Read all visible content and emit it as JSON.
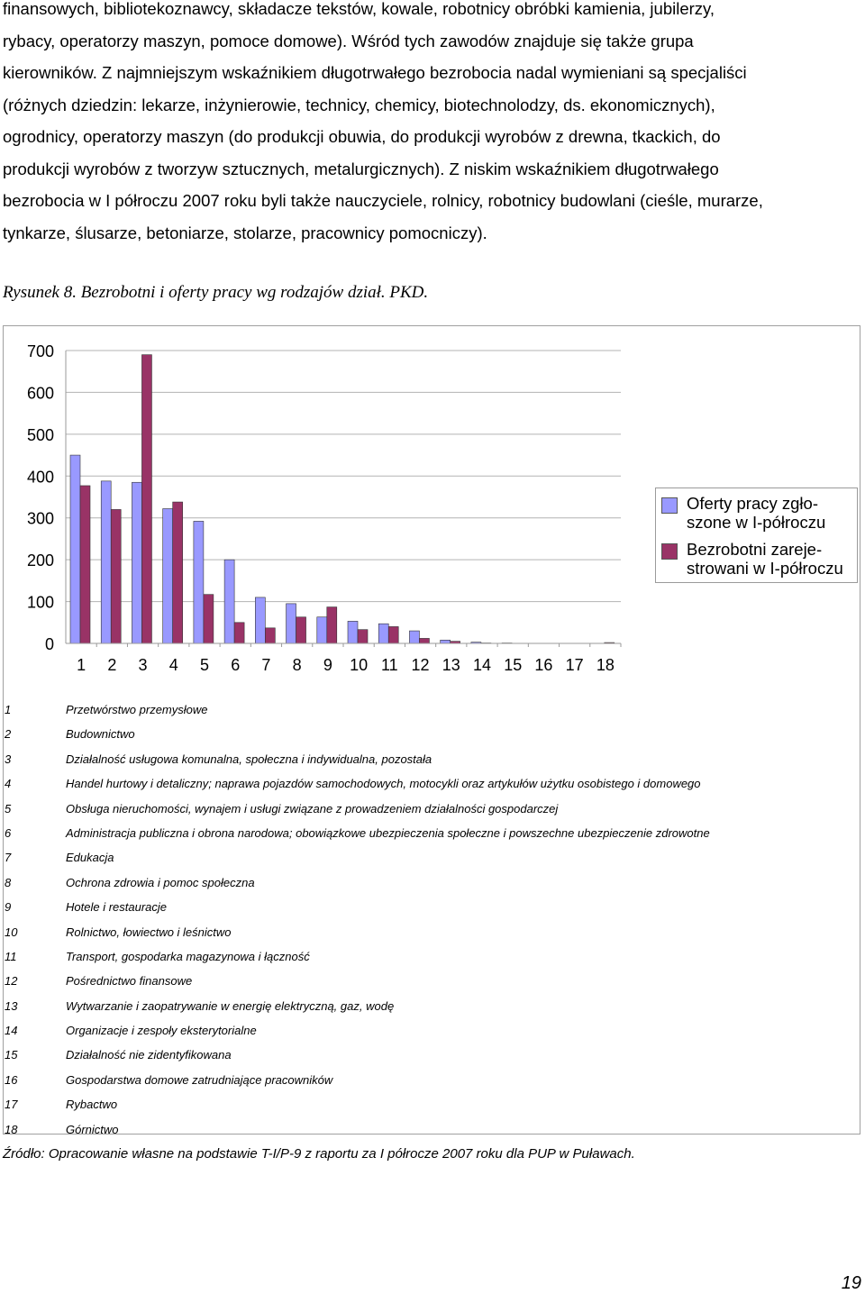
{
  "body_text": {
    "lines": [
      "finansowych, bibliotekoznawcy, składacze tekstów, kowale, robotnicy obróbki kamienia, jubilerzy,",
      "rybacy, operatorzy maszyn, pomoce domowe). Wśród tych zawodów znajduje się także grupa",
      "kierowników. Z najmniejszym wskaźnikiem długotrwałego bezrobocia nadal wymieniani są specjaliści",
      "(różnych dziedzin: lekarze, inżynierowie, technicy, chemicy, biotechnolodzy, ds. ekonomicznych),",
      "ogrodnicy, operatorzy maszyn (do produkcji obuwia, do produkcji wyrobów z drewna, tkackich, do",
      "produkcji wyrobów z tworzyw sztucznych,  metalurgicznych). Z niskim wskaźnikiem długotrwałego",
      "bezrobocia w I półroczu 2007 roku byli także nauczyciele, rolnicy, robotnicy budowlani (cieśle, murarze,",
      "tynkarze, ślusarze, betoniarze, stolarze, pracownicy pomocniczy)."
    ]
  },
  "figure_caption": "Rysunek 8. Bezrobotni i oferty pracy wg rodzajów dział. PKD.",
  "chart_data": {
    "type": "bar",
    "title": "",
    "xlabel": "",
    "ylabel": "",
    "categories": [
      "1",
      "2",
      "3",
      "4",
      "5",
      "6",
      "7",
      "8",
      "9",
      "10",
      "11",
      "12",
      "13",
      "14",
      "15",
      "16",
      "17",
      "18"
    ],
    "ylim": [
      0,
      700
    ],
    "yticks": [
      "0",
      "100",
      "200",
      "300",
      "400",
      "500",
      "600",
      "700"
    ],
    "grid": true,
    "legend_position": "right",
    "series": [
      {
        "name": "Oferty pracy zgłoszone w I-półroczu",
        "legend_label": "Oferty pracy zgło-\nszone w I-półroczu",
        "color": "#9999ff",
        "values": [
          450,
          388,
          385,
          322,
          292,
          200,
          110,
          95,
          63,
          53,
          47,
          30,
          8,
          3,
          1,
          0,
          0,
          0
        ]
      },
      {
        "name": "Bezrobotni zarejestrowani w I-półroczu",
        "legend_label": "Bezrobotni zareje-\nstrowani w I-półroczu",
        "color": "#993366",
        "values": [
          377,
          320,
          690,
          338,
          117,
          50,
          37,
          63,
          87,
          33,
          40,
          12,
          5,
          1,
          0,
          0,
          0,
          2
        ]
      }
    ]
  },
  "category_key": [
    {
      "num": "1",
      "label": "Przetwórstwo przemysłowe"
    },
    {
      "num": "2",
      "label": "Budownictwo"
    },
    {
      "num": "3",
      "label": "Działalność usługowa komunalna, społeczna i indywidualna, pozostała"
    },
    {
      "num": "4",
      "label": "Handel hurtowy i detaliczny; naprawa pojazdów samochodowych, motocykli oraz artykułów użytku osobistego i domowego"
    },
    {
      "num": "5",
      "label": "Obsługa nieruchomości, wynajem i usługi związane z prowadzeniem działalności gospodarczej"
    },
    {
      "num": "6",
      "label": "Administracja publiczna i obrona narodowa; obowiązkowe ubezpieczenia społeczne i powszechne ubezpieczenie zdrowotne"
    },
    {
      "num": "7",
      "label": "Edukacja"
    },
    {
      "num": "8",
      "label": "Ochrona zdrowia i pomoc społeczna"
    },
    {
      "num": "9",
      "label": "Hotele i restauracje"
    },
    {
      "num": "10",
      "label": "Rolnictwo, łowiectwo i leśnictwo"
    },
    {
      "num": "11",
      "label": "Transport, gospodarka magazynowa i łączność"
    },
    {
      "num": "12",
      "label": "Pośrednictwo finansowe"
    },
    {
      "num": "13",
      "label": "Wytwarzanie i zaopatrywanie w energię elektryczną, gaz, wodę"
    },
    {
      "num": "14",
      "label": "Organizacje i zespoły eksterytorialne"
    },
    {
      "num": "15",
      "label": "Działalność nie zidentyfikowana"
    },
    {
      "num": "16",
      "label": "Gospodarstwa domowe zatrudniające pracowników"
    },
    {
      "num": "17",
      "label": "Rybactwo"
    },
    {
      "num": "18",
      "label": "Górnictwo"
    }
  ],
  "source": "Źródło: Opracowanie własne na podstawie T-I/P-9 z raportu za I półrocze 2007 roku  dla PUP w Puławach.",
  "page_number": "19"
}
